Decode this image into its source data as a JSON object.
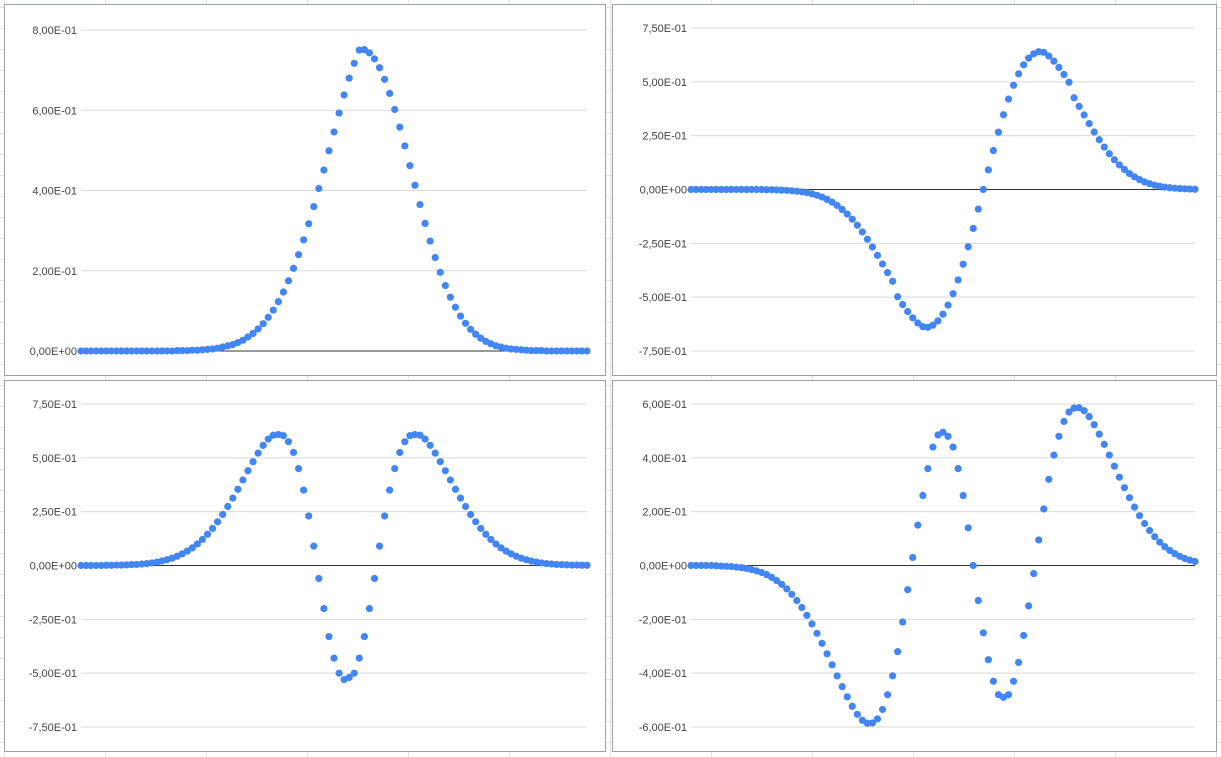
{
  "chart_data": [
    {
      "type": "scatter",
      "title": "",
      "xlabel": "",
      "ylabel": "",
      "ylim": [
        0,
        0.8
      ],
      "yticks": [
        "8,00E-01",
        "6,00E-01",
        "4,00E-01",
        "2,00E-01",
        "0,00E+00"
      ],
      "ytick_values": [
        0.8,
        0.6,
        0.4,
        0.2,
        0.0
      ],
      "xlim": [
        -5,
        5
      ],
      "grid": true,
      "series": [
        {
          "marker_color": "#4285f4",
          "x_start": -5,
          "x_end": 5,
          "x_step": 0.1,
          "y": [
            0,
            0,
            0,
            0,
            0,
            0,
            0,
            0,
            0,
            0,
            0,
            0,
            0,
            0,
            0,
            0,
            0,
            0,
            0,
            0.001,
            0.001,
            0.001,
            0.002,
            0.002,
            0.003,
            0.004,
            0.005,
            0.007,
            0.01,
            0.013,
            0.016,
            0.021,
            0.027,
            0.035,
            0.044,
            0.055,
            0.068,
            0.084,
            0.102,
            0.123,
            0.147,
            0.175,
            0.206,
            0.24,
            0.277,
            0.317,
            0.36,
            0.405,
            0.451,
            0.499,
            0.546,
            0.593,
            0.638,
            0.68,
            0.717,
            0.75,
            0.751,
            0.743,
            0.728,
            0.706,
            0.677,
            0.642,
            0.602,
            0.558,
            0.511,
            0.462,
            0.413,
            0.365,
            0.318,
            0.274,
            0.233,
            0.196,
            0.163,
            0.134,
            0.109,
            0.087,
            0.069,
            0.054,
            0.042,
            0.032,
            0.024,
            0.018,
            0.013,
            0.01,
            0.007,
            0.005,
            0.004,
            0.003,
            0.002,
            0.001,
            0.001,
            0.001,
            0,
            0,
            0,
            0,
            0,
            0,
            0,
            0,
            0
          ]
        }
      ]
    },
    {
      "type": "scatter",
      "title": "",
      "xlabel": "",
      "ylabel": "",
      "ylim": [
        -0.75,
        0.75
      ],
      "yticks": [
        "7,50E-01",
        "5,00E-01",
        "2,50E-01",
        "0,00E+00",
        "-2,50E-01",
        "-5,00E-01",
        "-7,50E-01"
      ],
      "ytick_values": [
        0.75,
        0.5,
        0.25,
        0.0,
        -0.25,
        -0.5,
        -0.75
      ],
      "xlim": [
        -5,
        5
      ],
      "grid": true,
      "series": [
        {
          "marker_color": "#4285f4",
          "x_start": -5,
          "x_end": 5,
          "x_step": 0.1,
          "y": [
            0,
            0,
            0,
            0,
            0,
            0,
            0,
            0,
            0,
            0,
            0,
            0,
            0,
            0,
            0,
            -0.001,
            -0.001,
            -0.002,
            -0.003,
            -0.004,
            -0.006,
            -0.008,
            -0.011,
            -0.015,
            -0.02,
            -0.027,
            -0.035,
            -0.046,
            -0.059,
            -0.074,
            -0.093,
            -0.114,
            -0.138,
            -0.166,
            -0.197,
            -0.231,
            -0.267,
            -0.306,
            -0.346,
            -0.386,
            -0.426,
            -0.498,
            -0.534,
            -0.567,
            -0.596,
            -0.62,
            -0.637,
            -0.64,
            -0.63,
            -0.61,
            -0.579,
            -0.537,
            -0.484,
            -0.42,
            -0.347,
            -0.266,
            -0.181,
            -0.091,
            0,
            0.091,
            0.181,
            0.266,
            0.347,
            0.42,
            0.484,
            0.537,
            0.579,
            0.61,
            0.63,
            0.64,
            0.637,
            0.62,
            0.596,
            0.567,
            0.534,
            0.498,
            0.426,
            0.386,
            0.346,
            0.306,
            0.267,
            0.231,
            0.197,
            0.166,
            0.138,
            0.114,
            0.093,
            0.074,
            0.059,
            0.046,
            0.035,
            0.027,
            0.02,
            0.015,
            0.011,
            0.008,
            0.006,
            0.004,
            0.003,
            0.002,
            0.001
          ]
        }
      ]
    },
    {
      "type": "scatter",
      "title": "",
      "xlabel": "",
      "ylabel": "",
      "ylim": [
        -0.75,
        0.75
      ],
      "yticks": [
        "7,50E-01",
        "5,00E-01",
        "2,50E-01",
        "0,00E+00",
        "-2,50E-01",
        "-5,00E-01",
        "-7,50E-01"
      ],
      "ytick_values": [
        0.75,
        0.5,
        0.25,
        0.0,
        -0.25,
        -0.5,
        -0.75
      ],
      "xlim": [
        -5,
        5
      ],
      "grid": true,
      "series": [
        {
          "marker_color": "#4285f4",
          "x_start": -5,
          "x_end": 5,
          "x_step": 0.1,
          "y": [
            0,
            0,
            0,
            0,
            0,
            0.001,
            0.001,
            0.002,
            0.002,
            0.003,
            0.004,
            0.005,
            0.007,
            0.009,
            0.012,
            0.016,
            0.021,
            0.027,
            0.034,
            0.043,
            0.054,
            0.067,
            0.082,
            0.1,
            0.121,
            0.145,
            0.172,
            0.203,
            0.237,
            0.274,
            0.313,
            0.354,
            0.397,
            0.44,
            0.482,
            0.522,
            0.558,
            0.587,
            0.605,
            0.608,
            0.603,
            0.575,
            0.525,
            0.45,
            0.35,
            0.23,
            0.09,
            -0.06,
            -0.2,
            -0.33,
            -0.43,
            -0.5,
            -0.53,
            -0.52,
            -0.5,
            -0.43,
            -0.33,
            -0.2,
            -0.06,
            0.09,
            0.23,
            0.35,
            0.45,
            0.525,
            0.575,
            0.603,
            0.608,
            0.605,
            0.587,
            0.558,
            0.522,
            0.482,
            0.44,
            0.397,
            0.354,
            0.313,
            0.274,
            0.237,
            0.203,
            0.172,
            0.145,
            0.121,
            0.1,
            0.082,
            0.067,
            0.054,
            0.043,
            0.034,
            0.027,
            0.021,
            0.016,
            0.012,
            0.009,
            0.007,
            0.005,
            0.004,
            0.003,
            0.002,
            0.002,
            0.001,
            0.001
          ]
        }
      ]
    },
    {
      "type": "scatter",
      "title": "",
      "xlabel": "",
      "ylabel": "",
      "ylim": [
        -0.6,
        0.6
      ],
      "yticks": [
        "6,00E-01",
        "4,00E-01",
        "2,00E-01",
        "0,00E+00",
        "-2,00E-01",
        "-4,00E-01",
        "-6,00E-01"
      ],
      "ytick_values": [
        0.6,
        0.4,
        0.2,
        0.0,
        -0.2,
        -0.4,
        -0.6
      ],
      "xlim": [
        -5,
        5
      ],
      "grid": true,
      "series": [
        {
          "marker_color": "#4285f4",
          "x_start": -5,
          "x_end": 5,
          "x_step": 0.1,
          "y": [
            0,
            0,
            0,
            0,
            0,
            -0.001,
            -0.002,
            -0.003,
            -0.004,
            -0.006,
            -0.008,
            -0.011,
            -0.015,
            -0.02,
            -0.026,
            -0.034,
            -0.044,
            -0.056,
            -0.07,
            -0.087,
            -0.107,
            -0.13,
            -0.156,
            -0.185,
            -0.217,
            -0.252,
            -0.289,
            -0.328,
            -0.369,
            -0.41,
            -0.45,
            -0.488,
            -0.523,
            -0.553,
            -0.575,
            -0.586,
            -0.585,
            -0.57,
            -0.535,
            -0.48,
            -0.41,
            -0.32,
            -0.21,
            -0.09,
            0.03,
            0.15,
            0.26,
            0.36,
            0.44,
            0.485,
            0.495,
            0.48,
            0.44,
            0.36,
            0.26,
            0.14,
            0.0,
            -0.13,
            -0.25,
            -0.35,
            -0.43,
            -0.48,
            -0.49,
            -0.48,
            -0.43,
            -0.36,
            -0.26,
            -0.15,
            -0.03,
            0.095,
            0.21,
            0.32,
            0.41,
            0.48,
            0.535,
            0.57,
            0.585,
            0.586,
            0.575,
            0.553,
            0.523,
            0.488,
            0.45,
            0.41,
            0.369,
            0.328,
            0.289,
            0.252,
            0.217,
            0.185,
            0.156,
            0.13,
            0.107,
            0.087,
            0.07,
            0.056,
            0.044,
            0.034,
            0.026,
            0.02,
            0.015
          ]
        }
      ]
    }
  ]
}
